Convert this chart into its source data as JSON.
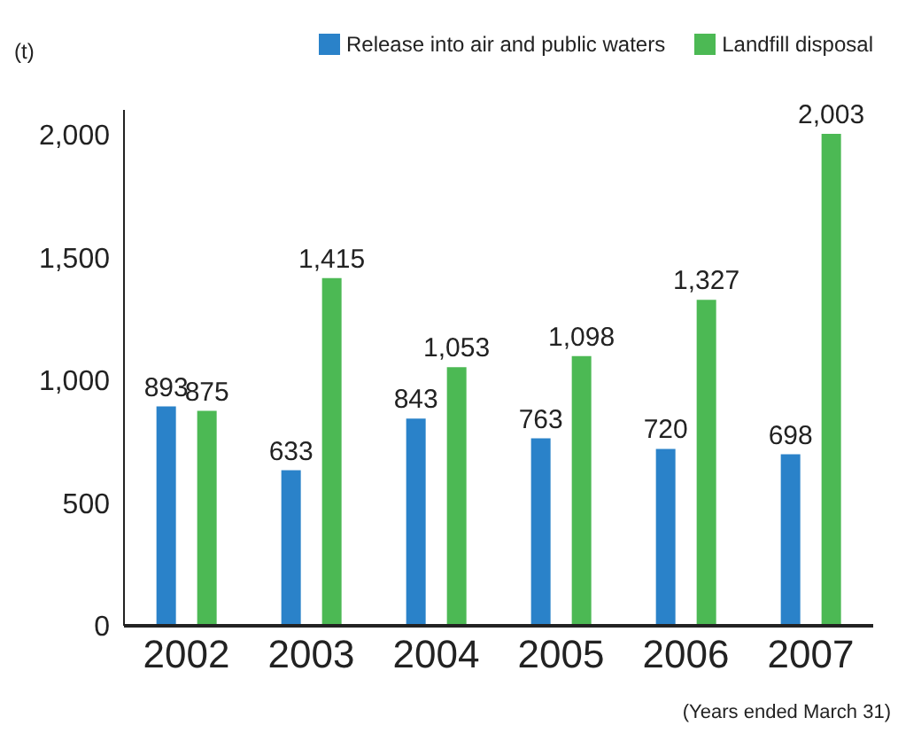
{
  "chart_data": {
    "type": "bar",
    "ylabel": "(t)",
    "categories": [
      "2002",
      "2003",
      "2004",
      "2005",
      "2006",
      "2007"
    ],
    "series": [
      {
        "name": "Release into air and public waters",
        "color": "#2a82c9",
        "values": [
          893,
          633,
          843,
          763,
          720,
          698
        ],
        "value_labels": [
          "893",
          "633",
          "843",
          "763",
          "720",
          "698"
        ]
      },
      {
        "name": "Landfill disposal",
        "color": "#4cb954",
        "values": [
          875,
          1415,
          1053,
          1098,
          1327,
          2003
        ],
        "value_labels": [
          "875",
          "1,415",
          "1,053",
          "1,098",
          "1,327",
          "2,003"
        ]
      }
    ],
    "ylim": [
      0,
      2100
    ],
    "yticks": [
      0,
      500,
      {
        "value": 1000,
        "label": "1,000"
      },
      {
        "value": 1500,
        "label": "1,500"
      },
      {
        "value": 2000,
        "label": "2,000"
      }
    ],
    "grid": false,
    "legend": "top right",
    "annotations": [
      "(Years ended March 31)"
    ]
  }
}
